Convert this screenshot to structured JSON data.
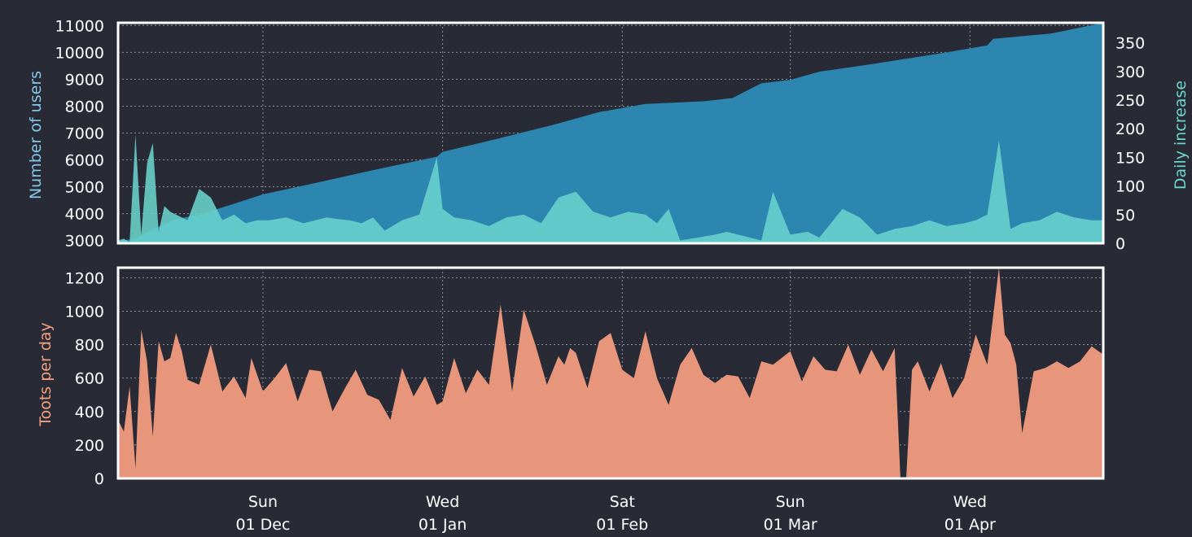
{
  "colors": {
    "background": "#282b36",
    "users_area": "#2c86b0",
    "daily_increase_area": "#69d3cc",
    "toots_area": "#e8967b",
    "users_label": "#84c7e8",
    "daily_label": "#6ed6cc",
    "toots_label": "#f2a07e"
  },
  "chart_data": [
    {
      "type": "area",
      "panel": "top",
      "ylabel": "Number of users",
      "y2label": "Daily increase",
      "ylim": [
        2900,
        11100
      ],
      "y2lim": [
        0,
        385
      ],
      "yticks": [
        3000,
        4000,
        5000,
        6000,
        7000,
        8000,
        9000,
        10000,
        11000
      ],
      "y2ticks": [
        0,
        50,
        100,
        150,
        200,
        250,
        300,
        350
      ],
      "grid": true,
      "x_start": "2019-11-06",
      "x_end": "2020-04-24",
      "xticks": [
        {
          "date": "2019-12-01",
          "weekday": "Sun",
          "label": "01 Dec"
        },
        {
          "date": "2020-01-01",
          "weekday": "Wed",
          "label": "01 Jan"
        },
        {
          "date": "2020-02-01",
          "weekday": "Sat",
          "label": "01 Feb"
        },
        {
          "date": "2020-03-01",
          "weekday": "Sun",
          "label": "01 Mar"
        },
        {
          "date": "2020-04-01",
          "weekday": "Wed",
          "label": "01 Apr"
        }
      ],
      "series": [
        {
          "axis": "left",
          "x": [
            "2019-11-06",
            "2019-11-09",
            "2019-11-12",
            "2019-11-16",
            "2019-11-20",
            "2019-11-25",
            "2019-12-01",
            "2019-12-10",
            "2019-12-20",
            "2019-12-31",
            "2020-01-01",
            "2020-01-10",
            "2020-01-20",
            "2020-01-28",
            "2020-02-05",
            "2020-02-15",
            "2020-02-20",
            "2020-02-25",
            "2020-03-01",
            "2020-03-06",
            "2020-03-15",
            "2020-03-25",
            "2020-03-28",
            "2020-04-04",
            "2020-04-05",
            "2020-04-15",
            "2020-04-24"
          ],
          "values": [
            3000,
            3060,
            3420,
            3800,
            3960,
            4300,
            4720,
            5140,
            5620,
            6120,
            6300,
            6760,
            7300,
            7780,
            8080,
            8180,
            8300,
            8850,
            8980,
            9280,
            9560,
            9900,
            10000,
            10260,
            10500,
            10700,
            11100
          ]
        },
        {
          "axis": "right",
          "x": [
            "2019-11-06",
            "2019-11-07",
            "2019-11-08",
            "2019-11-09",
            "2019-11-10",
            "2019-11-11",
            "2019-11-12",
            "2019-11-13",
            "2019-11-14",
            "2019-11-15",
            "2019-11-16",
            "2019-11-17",
            "2019-11-18",
            "2019-11-20",
            "2019-11-22",
            "2019-11-24",
            "2019-11-26",
            "2019-11-28",
            "2019-11-30",
            "2019-12-02",
            "2019-12-05",
            "2019-12-08",
            "2019-12-10",
            "2019-12-12",
            "2019-12-14",
            "2019-12-16",
            "2019-12-18",
            "2019-12-20",
            "2019-12-22",
            "2019-12-25",
            "2019-12-28",
            "2019-12-31",
            "2020-01-01",
            "2020-01-03",
            "2020-01-06",
            "2020-01-09",
            "2020-01-12",
            "2020-01-15",
            "2020-01-18",
            "2020-01-21",
            "2020-01-24",
            "2020-01-27",
            "2020-01-30",
            "2020-02-02",
            "2020-02-05",
            "2020-02-07",
            "2020-02-09",
            "2020-02-11",
            "2020-02-14",
            "2020-02-17",
            "2020-02-19",
            "2020-02-21",
            "2020-02-23",
            "2020-02-25",
            "2020-02-27",
            "2020-03-01",
            "2020-03-04",
            "2020-03-06",
            "2020-03-08",
            "2020-03-10",
            "2020-03-13",
            "2020-03-16",
            "2020-03-19",
            "2020-03-22",
            "2020-03-25",
            "2020-03-28",
            "2020-03-31",
            "2020-04-02",
            "2020-04-04",
            "2020-04-06",
            "2020-04-08",
            "2020-04-10",
            "2020-04-13",
            "2020-04-16",
            "2020-04-19",
            "2020-04-22",
            "2020-04-24"
          ],
          "values": [
            5,
            8,
            2,
            190,
            15,
            140,
            175,
            20,
            65,
            55,
            50,
            45,
            40,
            95,
            80,
            40,
            50,
            35,
            40,
            40,
            45,
            35,
            40,
            45,
            42,
            40,
            35,
            45,
            22,
            40,
            50,
            150,
            60,
            45,
            40,
            30,
            45,
            50,
            35,
            80,
            90,
            55,
            45,
            55,
            50,
            35,
            60,
            5,
            10,
            15,
            20,
            15,
            10,
            5,
            90,
            15,
            20,
            10,
            35,
            60,
            45,
            15,
            25,
            30,
            40,
            30,
            35,
            40,
            50,
            180,
            25,
            35,
            40,
            55,
            45,
            40,
            40
          ]
        }
      ]
    },
    {
      "type": "area",
      "panel": "bottom",
      "ylabel": "Toots per day",
      "ylim": [
        0,
        1260
      ],
      "yticks": [
        0,
        200,
        400,
        600,
        800,
        1000,
        1200
      ],
      "grid": true,
      "series": [
        {
          "x": [
            "2019-11-06",
            "2019-11-07",
            "2019-11-08",
            "2019-11-09",
            "2019-11-10",
            "2019-11-11",
            "2019-11-12",
            "2019-11-13",
            "2019-11-14",
            "2019-11-15",
            "2019-11-16",
            "2019-11-17",
            "2019-11-18",
            "2019-11-20",
            "2019-11-22",
            "2019-11-24",
            "2019-11-26",
            "2019-11-28",
            "2019-11-29",
            "2019-12-01",
            "2019-12-03",
            "2019-12-05",
            "2019-12-07",
            "2019-12-09",
            "2019-12-11",
            "2019-12-13",
            "2019-12-15",
            "2019-12-17",
            "2019-12-19",
            "2019-12-21",
            "2019-12-23",
            "2019-12-25",
            "2019-12-27",
            "2019-12-29",
            "2019-12-31",
            "2020-01-01",
            "2020-01-03",
            "2020-01-05",
            "2020-01-07",
            "2020-01-09",
            "2020-01-11",
            "2020-01-13",
            "2020-01-15",
            "2020-01-17",
            "2020-01-19",
            "2020-01-21",
            "2020-01-22",
            "2020-01-23",
            "2020-01-24",
            "2020-01-26",
            "2020-01-28",
            "2020-01-30",
            "2020-02-01",
            "2020-02-03",
            "2020-02-05",
            "2020-02-07",
            "2020-02-09",
            "2020-02-11",
            "2020-02-13",
            "2020-02-15",
            "2020-02-17",
            "2020-02-19",
            "2020-02-21",
            "2020-02-23",
            "2020-02-25",
            "2020-02-27",
            "2020-03-01",
            "2020-03-03",
            "2020-03-05",
            "2020-03-07",
            "2020-03-09",
            "2020-03-11",
            "2020-03-13",
            "2020-03-15",
            "2020-03-17",
            "2020-03-19",
            "2020-03-20",
            "2020-03-21",
            "2020-03-22",
            "2020-03-23",
            "2020-03-25",
            "2020-03-27",
            "2020-03-29",
            "2020-03-31",
            "2020-04-02",
            "2020-04-04",
            "2020-04-06",
            "2020-04-07",
            "2020-04-08",
            "2020-04-09",
            "2020-04-10",
            "2020-04-12",
            "2020-04-14",
            "2020-04-16",
            "2020-04-18",
            "2020-04-20",
            "2020-04-22",
            "2020-04-24"
          ],
          "values": [
            350,
            280,
            550,
            60,
            890,
            700,
            250,
            820,
            700,
            720,
            870,
            760,
            590,
            560,
            800,
            520,
            610,
            480,
            720,
            520,
            600,
            690,
            460,
            650,
            640,
            400,
            530,
            650,
            500,
            470,
            350,
            660,
            490,
            610,
            440,
            460,
            720,
            510,
            650,
            560,
            1040,
            520,
            1010,
            800,
            560,
            730,
            680,
            780,
            750,
            540,
            820,
            870,
            650,
            600,
            880,
            600,
            440,
            680,
            780,
            620,
            570,
            620,
            610,
            480,
            700,
            680,
            760,
            580,
            730,
            650,
            640,
            800,
            620,
            770,
            640,
            780,
            0,
            0,
            650,
            700,
            520,
            690,
            480,
            600,
            860,
            680,
            1260,
            860,
            810,
            680,
            270,
            640,
            660,
            700,
            660,
            700,
            790,
            740
          ]
        }
      ]
    }
  ]
}
